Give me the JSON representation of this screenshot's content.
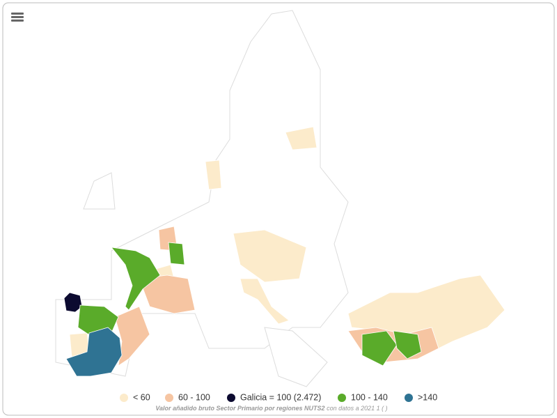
{
  "legend": {
    "items": [
      {
        "name": "< 60",
        "color": "#fcebcb"
      },
      {
        "name": "60 - 100",
        "color": "#f6c5a2"
      },
      {
        "name": "Galicia = 100 (2.472)",
        "color": "#0c0a30"
      },
      {
        "name": "100 - 140",
        "color": "#5aab2a"
      },
      {
        "name": ">140",
        "color": "#2f7393"
      }
    ]
  },
  "caption": {
    "title": "Valor añadido bruto Sector Primario por regiones NUTS2",
    "subtitle": "con datos a 2021 1 ( )"
  }
}
